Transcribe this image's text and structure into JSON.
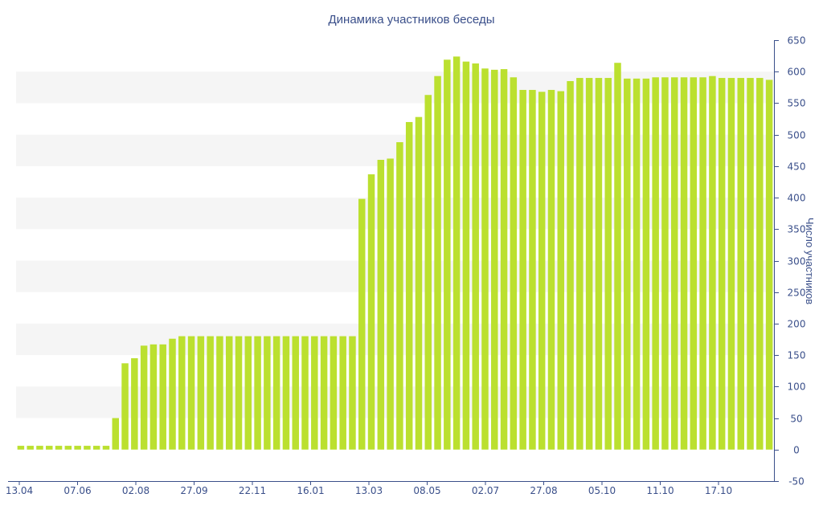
{
  "chart_data": {
    "type": "bar",
    "title": "Динамика участников беседы",
    "xlabel": "",
    "ylabel": "Число участников",
    "ylim": [
      -50,
      650
    ],
    "y_ticks": [
      -50,
      0,
      50,
      100,
      150,
      200,
      250,
      300,
      350,
      400,
      450,
      500,
      550,
      600,
      650
    ],
    "x_tick_labels": [
      "13.04",
      "07.06",
      "02.08",
      "27.09",
      "22.11",
      "16.01",
      "13.03",
      "08.05",
      "02.07",
      "27.08",
      "05.10",
      "11.10",
      "17.10"
    ],
    "y_axis_position": "right",
    "grid": "alternating horizontal bands",
    "bar_color": "#bbe02f",
    "axis_color": "#3a4f8a",
    "band_color": "#f5f5f5",
    "values": [
      6,
      6,
      6,
      6,
      6,
      6,
      6,
      6,
      6,
      6,
      50,
      137,
      145,
      165,
      167,
      167,
      176,
      180,
      180,
      180,
      180,
      180,
      180,
      180,
      180,
      180,
      180,
      180,
      180,
      180,
      180,
      180,
      180,
      180,
      180,
      180,
      398,
      437,
      460,
      462,
      488,
      520,
      528,
      563,
      593,
      619,
      624,
      616,
      613,
      605,
      603,
      604,
      591,
      571,
      571,
      568,
      571,
      569,
      585,
      590,
      590,
      590,
      590,
      614,
      589,
      589,
      589,
      591,
      591,
      591,
      591,
      591,
      591,
      593,
      590,
      590,
      590,
      590,
      590,
      587
    ]
  }
}
